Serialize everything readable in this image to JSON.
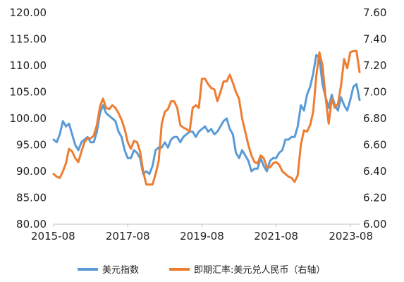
{
  "chart_data": {
    "type": "line",
    "left_axis": {
      "ylim": [
        80,
        120
      ],
      "ticks": [
        "80.00",
        "85.00",
        "90.00",
        "95.00",
        "100.00",
        "105.00",
        "110.00",
        "115.00",
        "120.00"
      ]
    },
    "right_axis": {
      "ylim": [
        6.0,
        7.6
      ],
      "ticks": [
        "6.00",
        "6.20",
        "6.40",
        "6.60",
        "6.80",
        "7.00",
        "7.20",
        "7.40",
        "7.60"
      ]
    },
    "x_axis": {
      "range": [
        "2015-08",
        "2023-11"
      ],
      "tick_labels": [
        "2015-08",
        "2017-08",
        "2019-08",
        "2021-08",
        "2023-08"
      ]
    },
    "legend_position": "bottom",
    "grid": false,
    "series": [
      {
        "name": "美元指数",
        "axis": "left",
        "color": "#5B9BD5",
        "x": [
          "2015-08",
          "2015-09",
          "2015-10",
          "2015-11",
          "2015-12",
          "2016-01",
          "2016-02",
          "2016-03",
          "2016-04",
          "2016-05",
          "2016-06",
          "2016-07",
          "2016-08",
          "2016-09",
          "2016-10",
          "2016-11",
          "2016-12",
          "2017-01",
          "2017-02",
          "2017-03",
          "2017-04",
          "2017-05",
          "2017-06",
          "2017-07",
          "2017-08",
          "2017-09",
          "2017-10",
          "2017-11",
          "2017-12",
          "2018-01",
          "2018-02",
          "2018-03",
          "2018-04",
          "2018-05",
          "2018-06",
          "2018-07",
          "2018-08",
          "2018-09",
          "2018-10",
          "2018-11",
          "2018-12",
          "2019-01",
          "2019-02",
          "2019-03",
          "2019-04",
          "2019-05",
          "2019-06",
          "2019-07",
          "2019-08",
          "2019-09",
          "2019-10",
          "2019-11",
          "2019-12",
          "2020-01",
          "2020-02",
          "2020-03",
          "2020-04",
          "2020-05",
          "2020-06",
          "2020-07",
          "2020-08",
          "2020-09",
          "2020-10",
          "2020-11",
          "2020-12",
          "2021-01",
          "2021-02",
          "2021-03",
          "2021-04",
          "2021-05",
          "2021-06",
          "2021-07",
          "2021-08",
          "2021-09",
          "2021-10",
          "2021-11",
          "2021-12",
          "2022-01",
          "2022-02",
          "2022-03",
          "2022-04",
          "2022-05",
          "2022-06",
          "2022-07",
          "2022-08",
          "2022-09",
          "2022-10",
          "2022-11",
          "2022-12",
          "2023-01",
          "2023-02",
          "2023-03",
          "2023-04",
          "2023-05",
          "2023-06",
          "2023-07",
          "2023-08",
          "2023-09",
          "2023-10",
          "2023-11"
        ],
        "values": [
          96.0,
          95.5,
          97.0,
          99.5,
          98.5,
          99.0,
          97.0,
          95.0,
          94.0,
          95.5,
          96.0,
          96.5,
          95.5,
          95.5,
          97.5,
          101.0,
          102.5,
          101.0,
          100.5,
          100.0,
          99.5,
          97.5,
          96.5,
          94.0,
          92.5,
          92.5,
          94.0,
          93.5,
          92.5,
          89.5,
          90.0,
          89.5,
          91.0,
          94.0,
          94.5,
          94.5,
          95.5,
          94.5,
          96.0,
          96.5,
          96.5,
          95.5,
          96.5,
          97.0,
          97.5,
          97.5,
          96.5,
          97.5,
          98.0,
          98.5,
          97.5,
          98.0,
          97.0,
          97.5,
          98.5,
          99.5,
          100.0,
          98.0,
          97.0,
          93.5,
          92.5,
          94.0,
          93.0,
          92.0,
          90.0,
          90.5,
          90.5,
          92.5,
          91.0,
          90.0,
          92.0,
          92.5,
          92.5,
          93.5,
          94.0,
          96.0,
          96.0,
          96.5,
          96.5,
          98.5,
          102.5,
          101.5,
          104.5,
          106.0,
          108.5,
          112.0,
          111.5,
          106.5,
          104.0,
          102.0,
          104.5,
          102.5,
          101.5,
          104.0,
          102.5,
          101.5,
          103.5,
          106.0,
          106.5,
          103.5
        ]
      },
      {
        "name": "即期汇率:美元兑人民币（右轴）",
        "axis": "right",
        "color": "#ED7D31",
        "x": [
          "2015-08",
          "2015-09",
          "2015-10",
          "2015-11",
          "2015-12",
          "2016-01",
          "2016-02",
          "2016-03",
          "2016-04",
          "2016-05",
          "2016-06",
          "2016-07",
          "2016-08",
          "2016-09",
          "2016-10",
          "2016-11",
          "2016-12",
          "2017-01",
          "2017-02",
          "2017-03",
          "2017-04",
          "2017-05",
          "2017-06",
          "2017-07",
          "2017-08",
          "2017-09",
          "2017-10",
          "2017-11",
          "2017-12",
          "2018-01",
          "2018-02",
          "2018-03",
          "2018-04",
          "2018-05",
          "2018-06",
          "2018-07",
          "2018-08",
          "2018-09",
          "2018-10",
          "2018-11",
          "2018-12",
          "2019-01",
          "2019-02",
          "2019-03",
          "2019-04",
          "2019-05",
          "2019-06",
          "2019-07",
          "2019-08",
          "2019-09",
          "2019-10",
          "2019-11",
          "2019-12",
          "2020-01",
          "2020-02",
          "2020-03",
          "2020-04",
          "2020-05",
          "2020-06",
          "2020-07",
          "2020-08",
          "2020-09",
          "2020-10",
          "2020-11",
          "2020-12",
          "2021-01",
          "2021-02",
          "2021-03",
          "2021-04",
          "2021-05",
          "2021-06",
          "2021-07",
          "2021-08",
          "2021-09",
          "2021-10",
          "2021-11",
          "2021-12",
          "2022-01",
          "2022-02",
          "2022-03",
          "2022-04",
          "2022-05",
          "2022-06",
          "2022-07",
          "2022-08",
          "2022-09",
          "2022-10",
          "2022-11",
          "2022-12",
          "2023-01",
          "2023-02",
          "2023-03",
          "2023-04",
          "2023-05",
          "2023-06",
          "2023-07",
          "2023-08",
          "2023-09",
          "2023-10",
          "2023-11"
        ],
        "values": [
          6.38,
          6.36,
          6.35,
          6.4,
          6.46,
          6.57,
          6.55,
          6.5,
          6.47,
          6.55,
          6.62,
          6.65,
          6.65,
          6.67,
          6.75,
          6.89,
          6.95,
          6.88,
          6.87,
          6.9,
          6.88,
          6.84,
          6.79,
          6.72,
          6.62,
          6.57,
          6.63,
          6.62,
          6.55,
          6.4,
          6.3,
          6.3,
          6.3,
          6.38,
          6.48,
          6.76,
          6.85,
          6.87,
          6.93,
          6.93,
          6.88,
          6.75,
          6.73,
          6.72,
          6.7,
          6.88,
          6.9,
          6.88,
          7.1,
          7.1,
          7.06,
          7.03,
          7.02,
          6.93,
          7.0,
          7.08,
          7.08,
          7.13,
          7.07,
          7.0,
          6.95,
          6.8,
          6.7,
          6.6,
          6.52,
          6.47,
          6.46,
          6.52,
          6.5,
          6.43,
          6.43,
          6.46,
          6.47,
          6.45,
          6.4,
          6.38,
          6.36,
          6.35,
          6.32,
          6.37,
          6.6,
          6.71,
          6.7,
          6.75,
          6.85,
          7.12,
          7.3,
          7.2,
          6.96,
          6.76,
          6.95,
          6.88,
          6.91,
          7.05,
          7.25,
          7.18,
          7.3,
          7.31,
          7.31,
          7.15
        ]
      }
    ]
  }
}
